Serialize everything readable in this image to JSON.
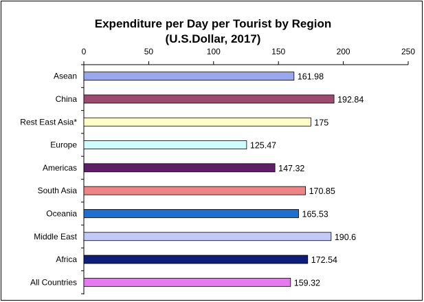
{
  "chart_data": {
    "type": "bar",
    "orientation": "horizontal",
    "title": "Expenditure per Day per Tourist by Region",
    "subtitle": "(U.S.Dollar, 2017)",
    "xlim": [
      0,
      250
    ],
    "xticks": [
      0,
      50,
      100,
      150,
      200,
      250
    ],
    "x_axis_position": "top",
    "categories": [
      "Asean",
      "China",
      "Rest East Asia*",
      "Europe",
      "Americas",
      "South Asia",
      "Oceania",
      "Middle East",
      "Africa",
      "All Countries"
    ],
    "values": [
      161.98,
      192.84,
      175,
      125.47,
      147.32,
      170.85,
      165.53,
      190.6,
      172.54,
      159.32
    ],
    "value_labels": [
      "161.98",
      "192.84",
      "175",
      "125.47",
      "147.32",
      "170.85",
      "165.53",
      "190.6",
      "172.54",
      "159.32"
    ],
    "colors": [
      "#9aa6ee",
      "#9c4b6e",
      "#fffdc8",
      "#cefcfc",
      "#5e1f66",
      "#ee8585",
      "#1f6fd0",
      "#c3c8f6",
      "#0e1f78",
      "#e878f0"
    ],
    "grid": false,
    "legend": "none"
  }
}
